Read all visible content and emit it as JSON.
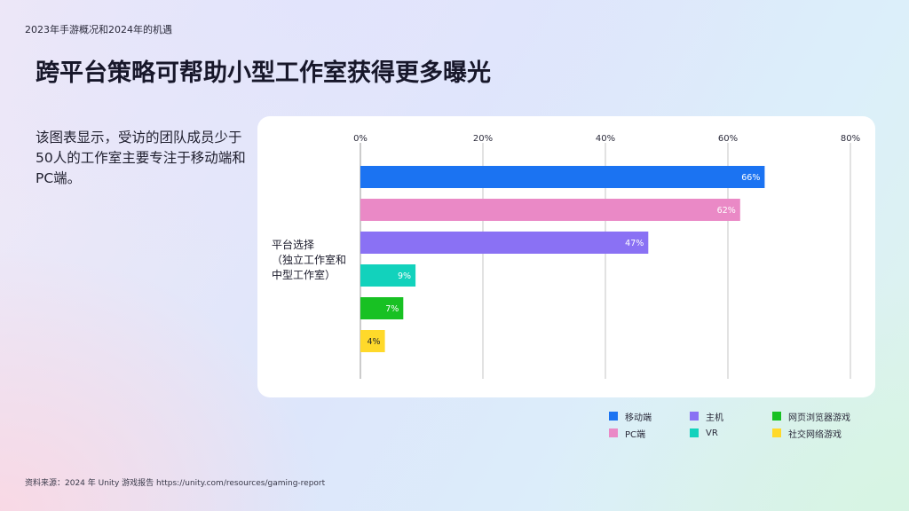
{
  "header": {
    "top_label": "2023年手游概况和2024年的机遇",
    "title": "跨平台策略可帮助小型工作室获得更多曝光"
  },
  "description": "该图表显示，受访的团队成员少于50人的工作室主要专注于移动端和PC端。",
  "source_note": "资料来源：2024 年 Unity 游戏报告 https://unity.com/resources/gaming-report",
  "chart_data": {
    "type": "bar",
    "orientation": "horizontal",
    "category_label": "平台选择\n（独立工作室和\n中型工作室）",
    "x_ticks": [
      "0%",
      "20%",
      "40%",
      "60%",
      "80%"
    ],
    "xlim": [
      0,
      80
    ],
    "grid": true,
    "legend_position": "bottom-right",
    "series": [
      {
        "name": "移动端",
        "value": 66,
        "label": "66%",
        "color": "#1b73f2"
      },
      {
        "name": "PC端",
        "value": 62,
        "label": "62%",
        "color": "#ea89c6"
      },
      {
        "name": "主机",
        "value": 47,
        "label": "47%",
        "color": "#8a71f4"
      },
      {
        "name": "VR",
        "value": 9,
        "label": "9%",
        "color": "#12d2bc"
      },
      {
        "name": "网页浏览器游戏",
        "value": 7,
        "label": "7%",
        "color": "#18c123"
      },
      {
        "name": "社交网络游戏",
        "value": 4,
        "label": "4%",
        "color": "#ffd92a"
      }
    ]
  },
  "legend": {
    "items": [
      {
        "name": "移动端",
        "color": "#1b73f2"
      },
      {
        "name": "主机",
        "color": "#8a71f4"
      },
      {
        "name": "网页浏览器游戏",
        "color": "#18c123"
      },
      {
        "name": "PC端",
        "color": "#ea89c6"
      },
      {
        "name": "VR",
        "color": "#12d2bc"
      },
      {
        "name": "社交网络游戏",
        "color": "#ffd92a"
      }
    ]
  }
}
